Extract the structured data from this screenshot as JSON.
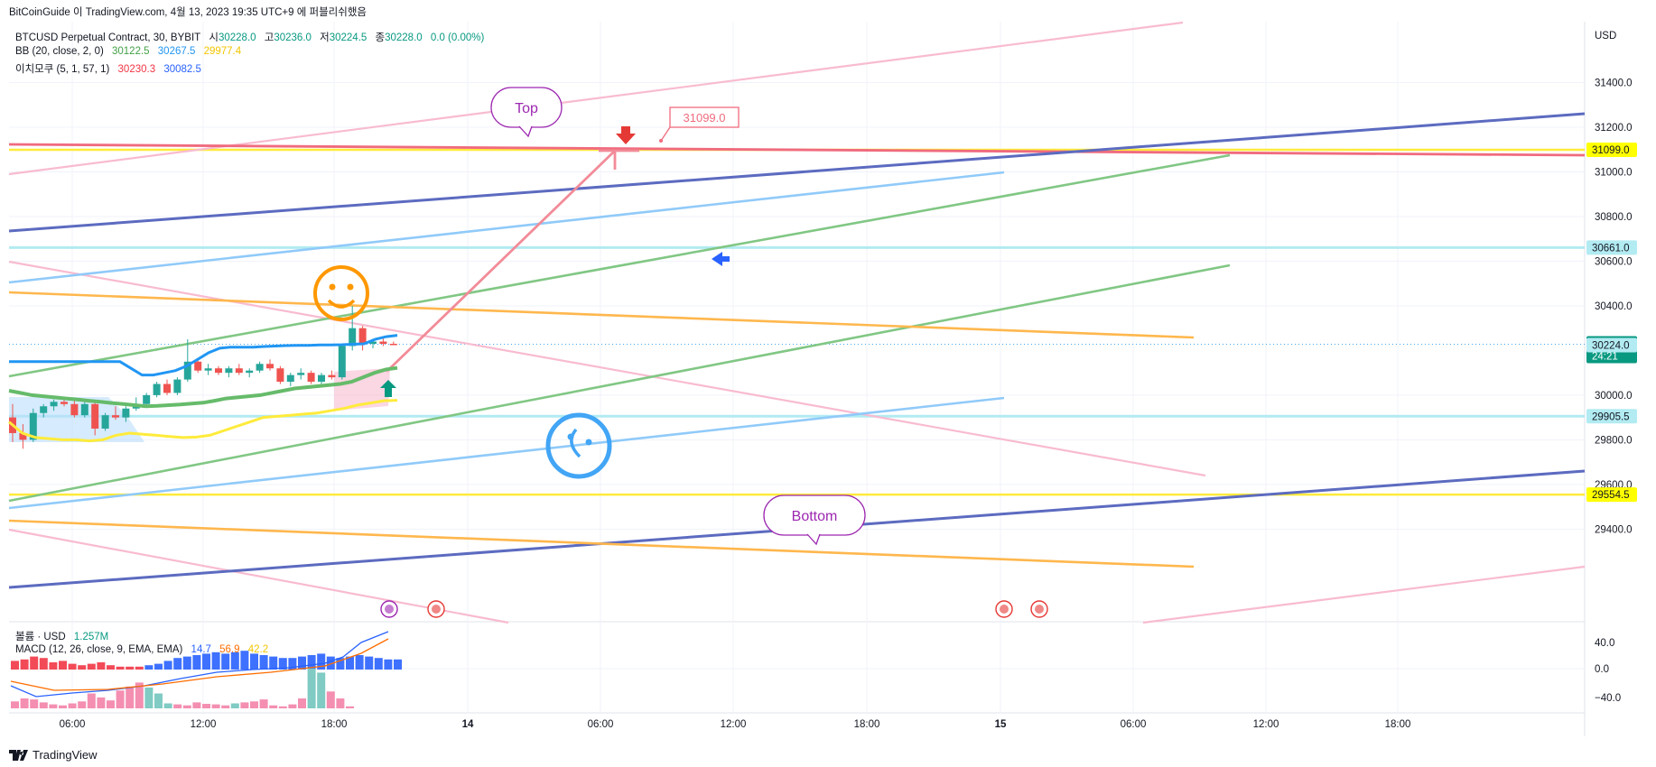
{
  "header": {
    "caption": "BitCoinGuide 이 TradingView.com, 4월 13, 2023 19:35 UTC+9 에 퍼블리쉬했음"
  },
  "legend": {
    "symbol": "BTCUSD Perpetual Contract, 30, BYBIT",
    "ohlc": [
      {
        "label": "시",
        "value": "30228.0"
      },
      {
        "label": "고",
        "value": "30236.0"
      },
      {
        "label": "저",
        "value": "30224.5"
      },
      {
        "label": "종",
        "value": "30228.0"
      }
    ],
    "change": "0.0 (0.00%)",
    "bb": {
      "label": "BB (20, close, 2, 0)",
      "values": [
        "30122.5",
        "30267.5",
        "29977.4"
      ]
    },
    "ichimoku": {
      "label": "이치모쿠 (5, 1, 57, 1)",
      "values": [
        "30230.3",
        "30082.5"
      ]
    },
    "volume": {
      "label": "볼륨 · USD",
      "value": "1.257M"
    },
    "macd": {
      "label": "MACD (12, 26, close, 9, EMA, EMA)",
      "values": [
        "14.7",
        "56.9",
        "42.2"
      ]
    }
  },
  "colors": {
    "up": "#26a69a",
    "down": "#ef5350",
    "bb_basis": "#43a047",
    "bb_upper": "#2196f3",
    "bb_lower": "#ffeb3b",
    "ichi_red": "#f23645",
    "ichi_blue": "#2962ff",
    "price_badge": "#089981",
    "yellow_badge": "#ffff00",
    "cyan_badge": "#b2ebf2"
  },
  "chart_data": {
    "type": "candlestick",
    "currency": "USD",
    "time_ticks": [
      "06:00",
      "12:00",
      "18:00",
      "14",
      "06:00",
      "12:00",
      "18:00",
      "15",
      "06:00",
      "12:00",
      "18:00"
    ],
    "price_ticks": [
      31400.0,
      31200.0,
      31000.0,
      30800.0,
      30600.0,
      30400.0,
      30000.0,
      29800.0,
      29600.0,
      29400.0
    ],
    "ylim": [
      29340,
      31600
    ],
    "price_labels": [
      {
        "value": 31099.0,
        "text": "31099.0",
        "style": "yellow"
      },
      {
        "value": 30661.0,
        "text": "30661.0",
        "style": "cyan"
      },
      {
        "value": 30228.0,
        "text": "30228.0",
        "sub": "24:21",
        "style": "green"
      },
      {
        "value": 30224.0,
        "text": "30224.0",
        "style": "cyan"
      },
      {
        "value": 29905.5,
        "text": "29905.5",
        "style": "cyan"
      },
      {
        "value": 29554.5,
        "text": "29554.5",
        "style": "yellow"
      }
    ],
    "candles": [
      [
        29900,
        29960,
        29790,
        29830
      ],
      [
        29830,
        29870,
        29760,
        29800
      ],
      [
        29800,
        29940,
        29790,
        29920
      ],
      [
        29920,
        29960,
        29900,
        29950
      ],
      [
        29950,
        29980,
        29930,
        29970
      ],
      [
        29970,
        29990,
        29950,
        29960
      ],
      [
        29960,
        29980,
        29900,
        29910
      ],
      [
        29910,
        29970,
        29900,
        29960
      ],
      [
        29960,
        29970,
        29820,
        29850
      ],
      [
        29850,
        29920,
        29840,
        29910
      ],
      [
        29910,
        29950,
        29890,
        29900
      ],
      [
        29900,
        29950,
        29880,
        29940
      ],
      [
        29940,
        29990,
        29930,
        29960
      ],
      [
        29960,
        30010,
        29950,
        30000
      ],
      [
        30000,
        30060,
        29990,
        30050
      ],
      [
        30050,
        30070,
        30000,
        30010
      ],
      [
        30010,
        30080,
        30000,
        30070
      ],
      [
        30070,
        30250,
        30060,
        30150
      ],
      [
        30150,
        30160,
        30100,
        30110
      ],
      [
        30110,
        30140,
        30090,
        30120
      ],
      [
        30120,
        30130,
        30090,
        30100
      ],
      [
        30100,
        30130,
        30080,
        30120
      ],
      [
        30120,
        30140,
        30090,
        30100
      ],
      [
        30100,
        30120,
        30080,
        30110
      ],
      [
        30110,
        30150,
        30100,
        30140
      ],
      [
        30140,
        30160,
        30110,
        30120
      ],
      [
        30120,
        30130,
        30050,
        30060
      ],
      [
        30060,
        30100,
        30040,
        30090
      ],
      [
        30090,
        30120,
        30070,
        30100
      ],
      [
        30100,
        30110,
        30050,
        30060
      ],
      [
        30060,
        30100,
        30050,
        30090
      ],
      [
        30090,
        30110,
        30070,
        30080
      ],
      [
        30080,
        30230,
        30070,
        30220
      ],
      [
        30220,
        30400,
        30200,
        30300
      ],
      [
        30300,
        30310,
        30200,
        30230
      ],
      [
        30230,
        30250,
        30210,
        30240
      ],
      [
        30240,
        30260,
        30220,
        30230
      ],
      [
        30230,
        30240,
        30224,
        30228
      ]
    ],
    "bb_upper": [
      30150,
      30150,
      30150,
      30150,
      30150,
      30150,
      30150,
      30150,
      30150,
      30150,
      30150,
      30120,
      30090,
      30090,
      30100,
      30110,
      30130,
      30160,
      30190,
      30210,
      30215,
      30215,
      30215,
      30218,
      30220,
      30222,
      30223,
      30223,
      30225,
      30225,
      30226,
      30228,
      30230,
      30250,
      30262,
      30268
    ],
    "bb_basis": [
      30020,
      30010,
      30000,
      29995,
      29990,
      29985,
      29980,
      29975,
      29970,
      29965,
      29960,
      29955,
      29950,
      29952,
      29955,
      29958,
      29962,
      29966,
      29975,
      29985,
      29990,
      29995,
      30000,
      30010,
      30020,
      30030,
      30035,
      30040,
      30045,
      30050,
      30060,
      30080,
      30100,
      30115,
      30122
    ],
    "bb_lower": [
      29880,
      29830,
      29810,
      29805,
      29800,
      29800,
      29795,
      29800,
      29820,
      29830,
      29825,
      29820,
      29815,
      29810,
      29812,
      29820,
      29840,
      29860,
      29880,
      29900,
      29905,
      29910,
      29915,
      29920,
      29930,
      29940,
      29955,
      29965,
      29975,
      29977
    ],
    "annotations": [
      {
        "type": "callout",
        "text": "Top"
      },
      {
        "type": "callout",
        "text": "Bottom"
      },
      {
        "type": "price_label",
        "text": "31099.0"
      }
    ],
    "macd_ticks": [
      "40.0",
      "0.0",
      "−40.0"
    ],
    "volume": [
      6,
      7,
      9,
      8,
      5,
      6,
      4,
      3,
      4,
      5,
      3,
      2,
      2,
      2,
      3,
      4,
      6,
      8,
      9,
      10,
      11,
      12,
      11,
      12,
      13,
      11,
      10,
      9,
      8,
      8,
      9,
      10,
      11,
      9,
      8,
      9,
      10,
      9,
      8,
      7,
      7
    ]
  }
}
